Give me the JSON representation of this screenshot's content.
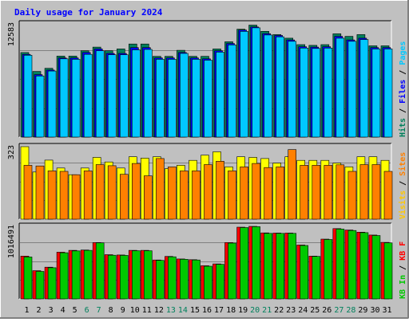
{
  "chart_data": {
    "type": "bar",
    "title": "Daily usage for January 2024",
    "categories": [
      "1",
      "2",
      "3",
      "4",
      "5",
      "6",
      "7",
      "8",
      "9",
      "10",
      "11",
      "12",
      "13",
      "14",
      "15",
      "16",
      "17",
      "18",
      "19",
      "20",
      "21",
      "22",
      "23",
      "24",
      "25",
      "26",
      "27",
      "28",
      "29",
      "30",
      "31"
    ],
    "weekend_days": [
      "6",
      "7",
      "13",
      "14",
      "20",
      "21",
      "27",
      "28"
    ],
    "panels": [
      {
        "name": "top",
        "max_label": "12583",
        "ylim": [
          0,
          12583
        ],
        "series": [
          {
            "name": "Hits",
            "color": "#00805c",
            "values": [
              9400,
              7300,
              7650,
              9000,
              9000,
              9600,
              10000,
              9600,
              9800,
              10350,
              10350,
              8980,
              8980,
              9650,
              8980,
              8980,
              9800,
              10600,
              12000,
              12450,
              11760,
              11400,
              11000,
              10280,
              10200,
              10280,
              11480,
              11200,
              11400,
              10150,
              10150
            ]
          },
          {
            "name": "Files",
            "color": "#0000ff",
            "values": [
              9200,
              6950,
              7450,
              8800,
              8800,
              9400,
              9800,
              9300,
              9300,
              9950,
              9950,
              8800,
              8800,
              9400,
              8800,
              8700,
              9600,
              10400,
              11900,
              12250,
              11500,
              11300,
              10800,
              10050,
              10000,
              10050,
              11200,
              10800,
              11000,
              9950,
              9950
            ]
          },
          {
            "name": "Pages",
            "color": "#00c8ff",
            "values": [
              9100,
              6800,
              7350,
              8700,
              8650,
              9200,
              9600,
              9150,
              9150,
              9700,
              9750,
              8650,
              8650,
              9300,
              8650,
              8550,
              9450,
              10250,
              11750,
              12150,
              11350,
              11150,
              10650,
              9900,
              9850,
              9900,
              11000,
              10650,
              10850,
              9800,
              9800
            ]
          }
        ]
      },
      {
        "name": "middle",
        "max_label": "323",
        "ylim": [
          0,
          323
        ],
        "series": [
          {
            "name": "Visits",
            "color": "#ffff00",
            "values": [
              323,
              210,
              263,
              228,
              198,
              228,
              275,
              255,
              228,
              278,
              272,
              278,
              225,
              240,
              262,
              285,
              300,
              233,
              278,
              275,
              270,
              250,
              278,
              262,
              262,
              262,
              250,
              233,
              278,
              278,
              262
            ]
          },
          {
            "name": "Sites",
            "color": "#ff8000",
            "values": [
              240,
              237,
              215,
              213,
              198,
              215,
              243,
              238,
              200,
              248,
              193,
              270,
              233,
              215,
              215,
              243,
              258,
              215,
              233,
              248,
              230,
              233,
              310,
              240,
              240,
              240,
              242,
              213,
              243,
              243,
              213
            ]
          }
        ]
      },
      {
        "name": "bottom",
        "max_label": "1016491",
        "ylim": [
          0,
          1016491
        ],
        "series": [
          {
            "name": "KB F",
            "color": "#ff0000",
            "values": [
              600000,
              395000,
              445000,
              655000,
              680000,
              685000,
              790000,
              620000,
              615000,
              680000,
              680000,
              545000,
              595000,
              560000,
              550000,
              465000,
              490000,
              790000,
              1005000,
              1016000,
              925000,
              923000,
              923000,
              755000,
              600000,
              838000,
              985000,
              965000,
              935000,
              895000,
              792000
            ]
          },
          {
            "name": "KB In",
            "color": "#00c800",
            "values": [
              588000,
              385000,
              437000,
              647000,
              672000,
              680000,
              785000,
              612000,
              610000,
              675000,
              675000,
              540000,
              590000,
              555000,
              545000,
              458000,
              485000,
              782000,
              1000000,
              1012000,
              918000,
              918000,
              918000,
              748000,
              595000,
              832000,
              978000,
              958000,
              928000,
              888000,
              785000
            ]
          }
        ]
      }
    ],
    "right_labels": {
      "top": [
        {
          "text": "Hits",
          "color": "#00805c"
        },
        {
          "text": " / ",
          "color": "#000000"
        },
        {
          "text": "Files",
          "color": "#0000ff"
        },
        {
          "text": " / ",
          "color": "#000000"
        },
        {
          "text": "Pages",
          "color": "#00c8ff"
        }
      ],
      "middle": [
        {
          "text": "Visits",
          "color": "#ffc800"
        },
        {
          "text": " / ",
          "color": "#000000"
        },
        {
          "text": "Sites",
          "color": "#ff8000"
        }
      ],
      "bottom": [
        {
          "text": "KB In",
          "color": "#00c800"
        },
        {
          "text": " / ",
          "color": "#000000"
        },
        {
          "text": "KB F",
          "color": "#ff0000"
        }
      ]
    },
    "grid": true,
    "colors": {
      "background": "#c0c0c0",
      "plot": "#c0c0c0",
      "title": "#0000ff",
      "weekday_tick": "#000000",
      "weekend_tick": "#00805c"
    }
  }
}
